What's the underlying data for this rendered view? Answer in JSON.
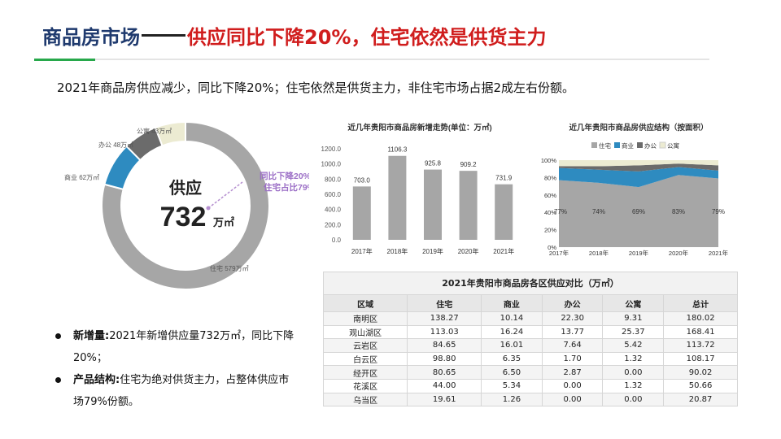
{
  "header": {
    "title_main": "商品房市场",
    "title_highlight": "供应同比下降20%，住宅依然是供货主力"
  },
  "subtitle": "2021年商品房供应减少，同比下降20%；住宅依然是供货主力，非住宅市场占据2成左右份额。",
  "colors": {
    "title_blue": "#1f3a6e",
    "title_red": "#d01d1d",
    "accent_green": "#27a84b",
    "residential": "#a6a6a6",
    "commercial": "#2e8bc0",
    "office": "#6b6b6b",
    "apartment": "#ecebd2"
  },
  "donut": {
    "center_label": "供应",
    "center_value": "732",
    "center_unit": "万㎡",
    "annotation_line1": "同比下降20%",
    "annotation_line2": "住宅占比79%"
  },
  "bullets": [
    {
      "key": "新增量:",
      "text": "2021年新增供应量732万㎡，同比下降20%；"
    },
    {
      "key": "产品结构:",
      "text": "住宅为绝对供货主力，占整体供应市场79%份额。"
    }
  ],
  "chart_data": [
    {
      "type": "pie",
      "categories": [
        "住宅 579万㎡",
        "商业 62万㎡",
        "办公 48万㎡",
        "公寓 43万㎡"
      ],
      "values": [
        579,
        62,
        48,
        43
      ]
    },
    {
      "type": "bar",
      "title": "近几年贵阳市商品房新增走势(单位：万㎡)",
      "categories": [
        "2017年",
        "2018年",
        "2019年",
        "2020年",
        "2021年"
      ],
      "values": [
        703.0,
        1106.3,
        925.8,
        909.2,
        731.9
      ],
      "value_labels": [
        "703.0",
        "1106.3",
        "925.8",
        "909.2",
        "731.9"
      ],
      "yticks": [
        "0.0",
        "200.0",
        "400.0",
        "600.0",
        "800.0",
        "1000.0",
        "1200.0"
      ],
      "ylim": [
        0,
        1200
      ]
    },
    {
      "type": "area",
      "title": "近几年贵阳市商品房供应结构（按面积）",
      "categories": [
        "2017年",
        "2018年",
        "2019年",
        "2020年",
        "2021年"
      ],
      "series": [
        {
          "name": "住宅",
          "values": [
            77,
            74,
            69,
            83,
            79
          ]
        },
        {
          "name": "商业",
          "values": [
            14,
            15,
            18,
            9,
            9
          ]
        },
        {
          "name": "办公",
          "values": [
            2,
            4,
            7,
            4,
            6
          ]
        },
        {
          "name": "公寓",
          "values": [
            7,
            7,
            6,
            4,
            6
          ]
        }
      ],
      "residential_labels": [
        "77%",
        "74%",
        "69%",
        "83%",
        "79%"
      ],
      "yticks": [
        "0%",
        "20%",
        "40%",
        "60%",
        "80%",
        "100%"
      ],
      "ylim": [
        0,
        100
      ],
      "legend_position": "top-left"
    },
    {
      "type": "table",
      "title": "2021年贵阳市商品房各区供应对比（万㎡）",
      "columns": [
        "区域",
        "住宅",
        "商业",
        "办公",
        "公寓",
        "总计"
      ],
      "rows": [
        [
          "南明区",
          "138.27",
          "10.14",
          "22.30",
          "9.31",
          "180.02"
        ],
        [
          "观山湖区",
          "113.03",
          "16.24",
          "13.77",
          "25.37",
          "168.41"
        ],
        [
          "云岩区",
          "84.65",
          "16.01",
          "7.64",
          "5.42",
          "113.72"
        ],
        [
          "白云区",
          "98.80",
          "6.35",
          "1.70",
          "1.32",
          "108.17"
        ],
        [
          "经开区",
          "80.65",
          "6.50",
          "2.87",
          "0.00",
          "90.02"
        ],
        [
          "花溪区",
          "44.00",
          "5.34",
          "0.00",
          "1.32",
          "50.66"
        ],
        [
          "乌当区",
          "19.61",
          "1.26",
          "0.00",
          "0.00",
          "20.87"
        ]
      ]
    }
  ]
}
